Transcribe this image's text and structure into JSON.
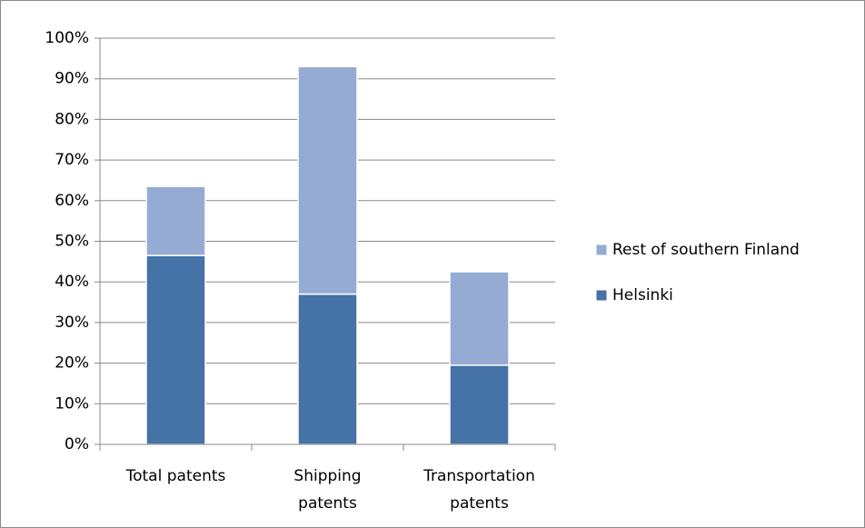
{
  "chart_data": {
    "type": "stacked_bar",
    "categories": [
      "Total patents",
      "Shipping\npatents",
      "Transportation\npatents"
    ],
    "series": [
      {
        "name": "Helsinki",
        "color": "#4572a7",
        "values": [
          46.5,
          37,
          19.5
        ]
      },
      {
        "name": "Rest of southern Finland",
        "color": "#95abd3",
        "values": [
          17,
          56,
          23
        ]
      }
    ],
    "ylim": [
      0,
      100
    ],
    "yticks": [
      {
        "value": 0,
        "label": "0%"
      },
      {
        "value": 10,
        "label": "10%"
      },
      {
        "value": 20,
        "label": "20%"
      },
      {
        "value": 30,
        "label": "30%"
      },
      {
        "value": 40,
        "label": "40%"
      },
      {
        "value": 50,
        "label": "50%"
      },
      {
        "value": 60,
        "label": "60%"
      },
      {
        "value": 70,
        "label": "70%"
      },
      {
        "value": 80,
        "label": "80%"
      },
      {
        "value": 90,
        "label": "90%"
      },
      {
        "value": 100,
        "label": "100%"
      }
    ],
    "grid": true,
    "legend": "right"
  }
}
